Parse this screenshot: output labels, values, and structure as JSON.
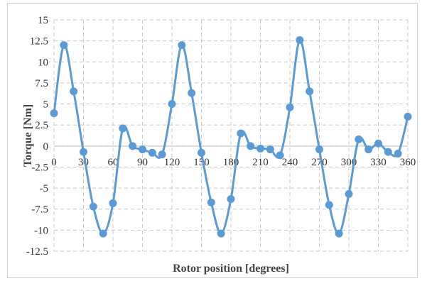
{
  "chart_data": {
    "type": "line",
    "title": "",
    "xlabel": "Rotor position [degrees]",
    "ylabel": "Torque [Nm]",
    "xlim": [
      0,
      360
    ],
    "ylim": [
      -12.5,
      15
    ],
    "x_ticks": [
      "0",
      "30",
      "60",
      "90",
      "120",
      "150",
      "180",
      "210",
      "240",
      "270",
      "300",
      "330",
      "360"
    ],
    "y_ticks": [
      "15",
      "12.5",
      "10",
      "7.5",
      "5",
      "2.5",
      "0",
      "-2.5",
      "-5",
      "-7.5",
      "-10",
      "-12.5"
    ],
    "grid": true,
    "legend": "none",
    "series_color": "#5b9bd5",
    "series": [
      {
        "x": [
          0,
          10,
          20,
          30,
          40,
          50,
          60,
          70,
          80,
          90,
          100,
          110,
          120,
          130,
          140,
          150,
          160,
          170,
          180,
          190,
          200,
          210,
          220,
          230,
          240,
          250,
          260,
          270,
          280,
          290,
          300,
          310,
          320,
          330,
          340,
          350,
          360
        ],
        "values": [
          3.9,
          12.0,
          6.5,
          -0.7,
          -7.2,
          -10.4,
          -6.8,
          2.1,
          0.0,
          -0.4,
          -0.8,
          -1.0,
          5.0,
          12.0,
          6.3,
          -0.8,
          -6.7,
          -10.4,
          -6.3,
          1.5,
          0.0,
          -0.3,
          -0.4,
          -1.1,
          4.6,
          12.6,
          6.5,
          -0.4,
          -7.0,
          -10.4,
          -5.7,
          0.8,
          -0.4,
          0.3,
          -0.7,
          -0.9,
          3.5
        ]
      }
    ]
  }
}
